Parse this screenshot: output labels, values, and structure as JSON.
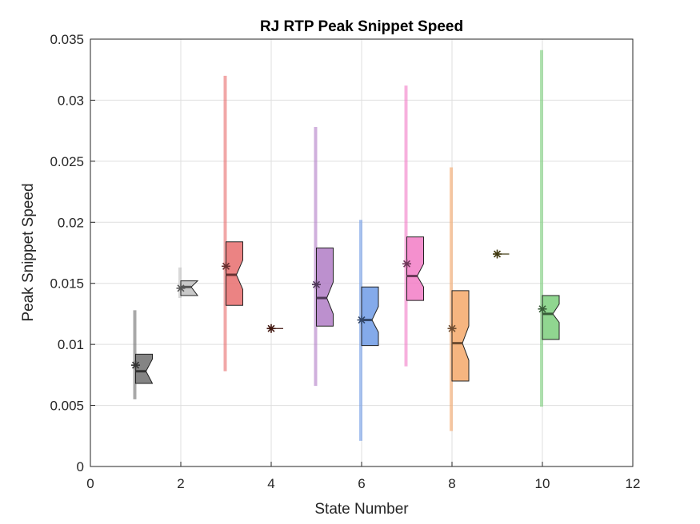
{
  "chart_data": {
    "type": "box",
    "title": "RJ  RTP Peak Snippet Speed",
    "xlabel": "State Number",
    "ylabel": "Peak Snippet Speed",
    "xlim": [
      0,
      12
    ],
    "ylim": [
      0,
      0.035
    ],
    "xticks": [
      "0",
      "2",
      "4",
      "6",
      "8",
      "10",
      "12"
    ],
    "yticks": [
      "0",
      "0.005",
      "0.01",
      "0.015",
      "0.02",
      "0.025",
      "0.03",
      "0.035"
    ],
    "grid": true,
    "series": [
      {
        "state": 1,
        "color": "#6e6e6e",
        "whisker_low": 0.0055,
        "whisker_high": 0.0128,
        "q1": 0.0068,
        "median": 0.0078,
        "q3": 0.0092,
        "notch_low": 0.0068,
        "notch_high": 0.0088,
        "mean": 0.0083
      },
      {
        "state": 2,
        "color": "#c0c0c0",
        "whisker_low": 0.0138,
        "whisker_high": 0.0163,
        "q1": 0.014,
        "median": 0.0147,
        "q3": 0.0152,
        "notch_low": 0.014,
        "notch_high": 0.0152,
        "mean": 0.0146
      },
      {
        "state": 3,
        "color": "#e86d6d",
        "whisker_low": 0.0078,
        "whisker_high": 0.032,
        "q1": 0.0132,
        "median": 0.0157,
        "q3": 0.0184,
        "notch_low": 0.0145,
        "notch_high": 0.0169,
        "mean": 0.0164
      },
      {
        "state": 4,
        "color": "#8b2e1f",
        "whisker_low": 0.0113,
        "whisker_high": 0.0114,
        "q1": 0.0113,
        "median": 0.0113,
        "q3": 0.0114,
        "notch_low": 0.0113,
        "notch_high": 0.0114,
        "mean": 0.0113
      },
      {
        "state": 5,
        "color": "#b07cc6",
        "whisker_low": 0.0066,
        "whisker_high": 0.0278,
        "q1": 0.0115,
        "median": 0.0138,
        "q3": 0.0179,
        "notch_low": 0.0125,
        "notch_high": 0.0151,
        "mean": 0.0149
      },
      {
        "state": 6,
        "color": "#6f9be6",
        "whisker_low": 0.0021,
        "whisker_high": 0.0202,
        "q1": 0.0099,
        "median": 0.012,
        "q3": 0.0147,
        "notch_low": 0.011,
        "notch_high": 0.0131,
        "mean": 0.012
      },
      {
        "state": 7,
        "color": "#f27cc6",
        "whisker_low": 0.0082,
        "whisker_high": 0.0312,
        "q1": 0.0136,
        "median": 0.0156,
        "q3": 0.0188,
        "notch_low": 0.0147,
        "notch_high": 0.0166,
        "mean": 0.0166
      },
      {
        "state": 8,
        "color": "#f5a86a",
        "whisker_low": 0.0029,
        "whisker_high": 0.0245,
        "q1": 0.007,
        "median": 0.0101,
        "q3": 0.0144,
        "notch_low": 0.0087,
        "notch_high": 0.0115,
        "mean": 0.0113
      },
      {
        "state": 9,
        "color": "#8a7a1e",
        "whisker_low": 0.0174,
        "whisker_high": 0.0175,
        "q1": 0.0174,
        "median": 0.0174,
        "q3": 0.0175,
        "notch_low": 0.0174,
        "notch_high": 0.0175,
        "mean": 0.0174
      },
      {
        "state": 10,
        "color": "#7ccf7c",
        "whisker_low": 0.0049,
        "whisker_high": 0.0341,
        "q1": 0.0104,
        "median": 0.0125,
        "q3": 0.014,
        "notch_low": 0.0118,
        "notch_high": 0.0133,
        "mean": 0.0129
      }
    ]
  }
}
